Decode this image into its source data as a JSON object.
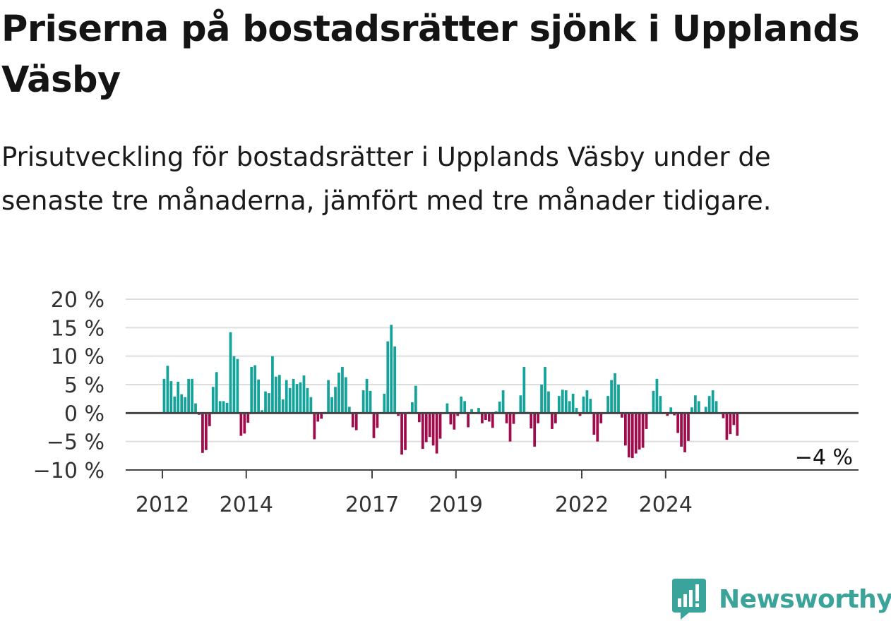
{
  "title": "Priserna på bostadsrätter sjönk i Upplands Väsby",
  "subtitle": "Prisutveckling för bostadsrätter i Upplands Väsby under de senaste tre månaderna, jämfört med tre månader tidigare.",
  "brand": {
    "name": "Newsworthy",
    "icon": "newsworthy-logo-icon",
    "color": "#3aa39a"
  },
  "colors": {
    "positive": "#13a39a",
    "negative": "#a00c4b",
    "grid": "#dddddd",
    "baseline": "#444444"
  },
  "last_value_label": "−4 %",
  "chart_data": {
    "type": "bar",
    "title": "Priserna på bostadsrätter sjönk i Upplands Väsby",
    "subtitle": "Prisutveckling för bostadsrätter i Upplands Väsby under de senaste tre månaderna, jämfört med tre månader tidigare.",
    "x_start": "2012-01",
    "x_end": "2025-04",
    "ylim": [
      -10,
      20
    ],
    "y_ticks": [
      20,
      15,
      10,
      5,
      0,
      -5,
      -10
    ],
    "y_tick_labels": [
      "20 %",
      "15 %",
      "10 %",
      "5 %",
      "0 %",
      "−5 %",
      "−10 %"
    ],
    "x_ticks": [
      "2012",
      "2014",
      "2017",
      "2019",
      "2022",
      "2024"
    ],
    "grid": true,
    "positive_color": "#13a39a",
    "negative_color": "#a00c4b",
    "values": [
      6,
      8.3,
      5.6,
      2.9,
      5.5,
      3.3,
      2.8,
      6,
      6,
      1.7,
      -0.3,
      -7,
      -6.5,
      -2.3,
      4.6,
      7.2,
      2.1,
      2.1,
      1.8,
      14.2,
      10,
      9.5,
      -4,
      -3.6,
      -1.7,
      8.1,
      8.4,
      5.9,
      0.5,
      3.8,
      3.5,
      10,
      6.4,
      6.7,
      2.4,
      5.8,
      4.4,
      6,
      5.1,
      5.4,
      6.6,
      4.4,
      2.8,
      -4.6,
      -1.5,
      -1,
      0.2,
      5.8,
      2.8,
      4.6,
      7.1,
      8.1,
      6.3,
      1.1,
      -2.5,
      -3,
      0.1,
      4,
      6,
      3.9,
      -4.4,
      -2.6,
      0.1,
      3.4,
      12.6,
      15.5,
      11.7,
      -0.5,
      -7.3,
      -6.5,
      0.2,
      1.9,
      4.8,
      -1.6,
      -6.3,
      -5.1,
      -4.2,
      -5.7,
      -7.1,
      -4.5,
      0.1,
      1.7,
      -2,
      -2.9,
      -0.5,
      2.9,
      2.1,
      -2.5,
      0.7,
      0.1,
      0.9,
      -1.8,
      -1.2,
      -1.5,
      -2.6,
      0.3,
      2,
      4,
      -1.8,
      -5,
      -1.9,
      0.1,
      3.1,
      8.1,
      0.2,
      -2.7,
      -5.9,
      -1.8,
      5,
      8.1,
      3.8,
      -2.8,
      -1.8,
      3,
      4.1,
      4,
      2.1,
      3.4,
      0.9,
      -0.5,
      2.9,
      4,
      2.5,
      -3.8,
      -5,
      -1.8,
      0.1,
      3,
      5.8,
      7,
      5,
      -0.8,
      -5.7,
      -7.8,
      -7.9,
      -7.1,
      -6.4,
      -6.1,
      -2.8,
      0.2,
      3.9,
      6,
      3,
      0.1,
      -0.5,
      1,
      -0.4,
      -3.5,
      -5.9,
      -6.9,
      -4.9,
      1,
      3.1,
      2.1,
      0.1,
      1.1,
      3,
      4,
      2.1,
      0.1,
      -0.9,
      -4.7,
      -3.7,
      -2.1,
      -4
    ]
  }
}
